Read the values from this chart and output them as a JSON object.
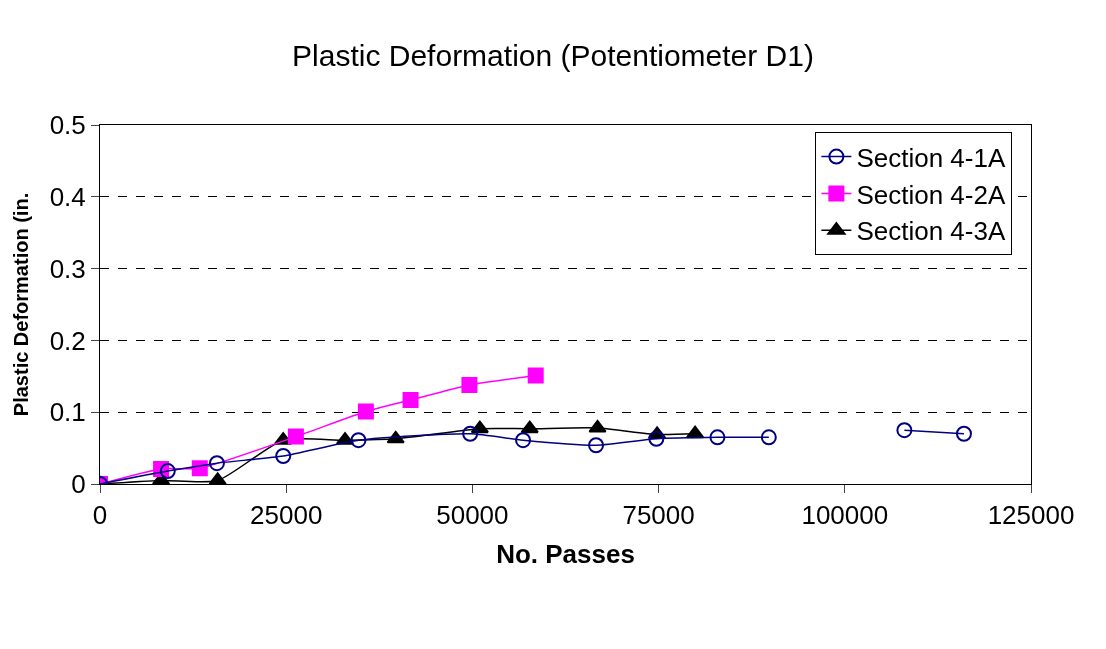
{
  "chart_data": {
    "type": "line",
    "title": "Plastic Deformation (Potentiometer D1)",
    "xlabel": "No. Passes",
    "ylabel": "Plastic Deformation (in.",
    "xlim": [
      0,
      125000
    ],
    "xticks": [
      0,
      25000,
      50000,
      75000,
      100000,
      125000
    ],
    "ylim": [
      0,
      0.5
    ],
    "yticks": [
      0,
      0.1,
      0.2,
      0.3,
      0.4,
      0.5
    ],
    "grid": "y",
    "legend": "top right",
    "line_style": "solid",
    "series": [
      {
        "name": "Section 4-1A",
        "color": "#000080",
        "marker": "circle",
        "x": [
          0,
          9100,
          15700,
          24600,
          34700,
          49700,
          56800,
          66600,
          74700,
          82900,
          89800,
          99000,
          108000,
          116000
        ],
        "values": [
          0,
          0.018,
          0.029,
          0.039,
          0.061,
          0.07,
          0.061,
          0.054,
          0.063,
          0.065,
          0.065,
          null,
          0.075,
          0.07
        ]
      },
      {
        "name": "Section 4-2A",
        "color": "#ff00ff",
        "marker": "square",
        "x": [
          0,
          8200,
          13400,
          26300,
          35700,
          41700,
          49600,
          58500
        ],
        "values": [
          0,
          0.021,
          0.022,
          0.066,
          0.101,
          0.117,
          0.138,
          0.151
        ]
      },
      {
        "name": "Section 4-3A",
        "color": "#000000",
        "marker": "triangle",
        "x": [
          0,
          8200,
          15800,
          24600,
          32900,
          39700,
          51000,
          57700,
          66800,
          74800,
          79900
        ],
        "values": [
          0,
          0.005,
          0.005,
          0.061,
          0.061,
          0.063,
          0.077,
          0.077,
          0.078,
          0.069,
          0.07
        ]
      }
    ]
  }
}
